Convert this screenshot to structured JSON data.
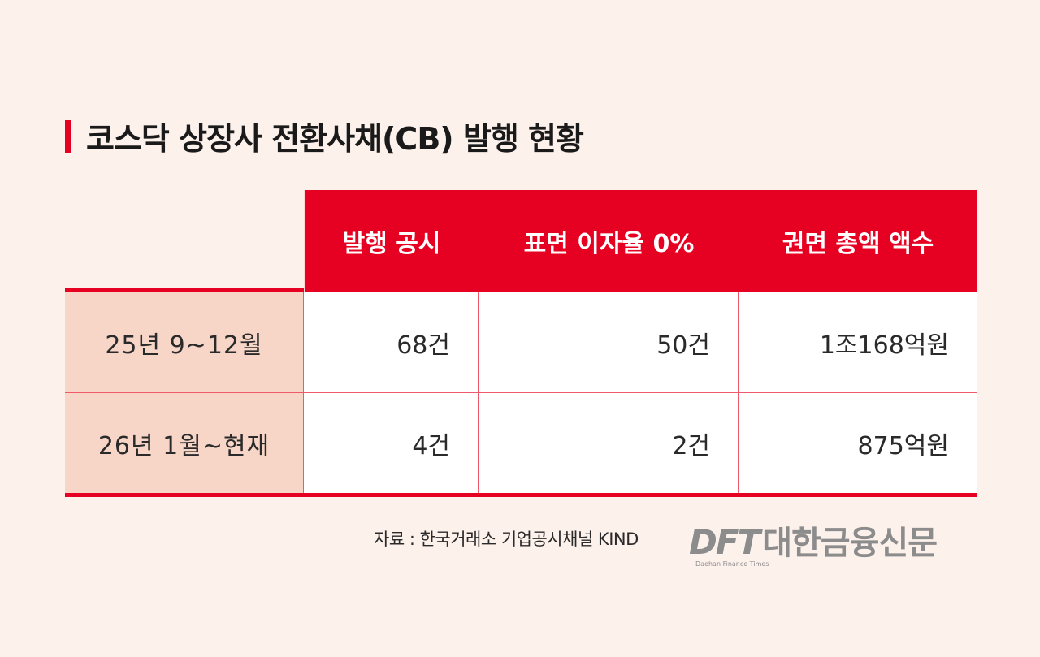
{
  "title": "코스닥 상장사 전환사채(CB) 발행 현황",
  "chart_data": {
    "type": "table",
    "title": "코스닥 상장사 전환사채(CB) 발행 현황",
    "columns": [
      "",
      "발행 공시",
      "표면 이자율 0%",
      "권면 총액 액수"
    ],
    "rows": [
      {
        "label": "25년  9~12월",
        "values": [
          "68건",
          "50건",
          "1조168억원"
        ]
      },
      {
        "label": "26년 1월~현재",
        "values": [
          "4건",
          "2건",
          "875억원"
        ]
      }
    ],
    "colors": {
      "header": "#e60021",
      "row_label_bg": "#f7d6c8",
      "background": "#fdf1ec"
    }
  },
  "source": "자료 : 한국거래소 기업공시채널 KIND",
  "logo": {
    "abbr": "DFT",
    "korean": "대한금융신문",
    "english": "Daehan Finance Times"
  }
}
